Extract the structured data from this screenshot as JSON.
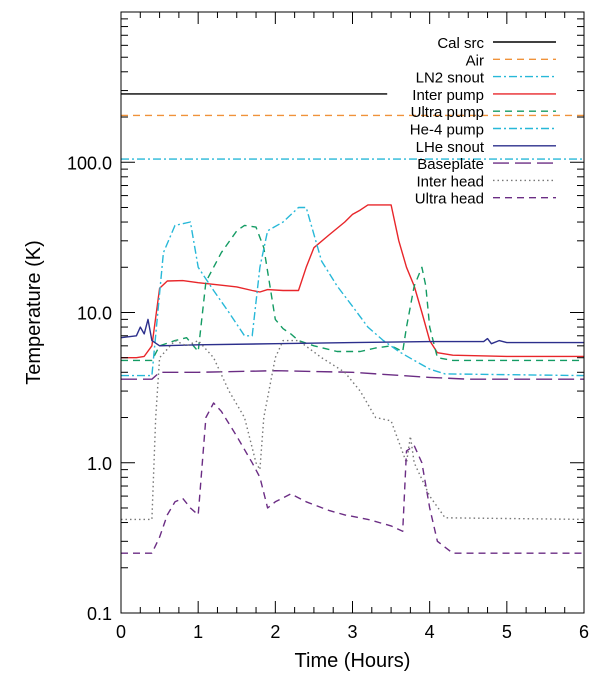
{
  "chart_data": {
    "type": "line",
    "xlabel": "Time (Hours)",
    "ylabel": "Temperature (K)",
    "xlim": [
      0,
      6
    ],
    "ylim": [
      0.1,
      1000
    ],
    "yscale": "log",
    "grid": false,
    "legend_position": "top-right",
    "x_ticks": [
      0,
      1,
      2,
      3,
      4,
      5,
      6
    ],
    "x_tick_labels": [
      "0",
      "1",
      "2",
      "3",
      "4",
      "5",
      "6"
    ],
    "y_ticks": [
      0.1,
      1,
      10,
      100
    ],
    "y_tick_labels": [
      "0.1",
      "1.0",
      "10.0",
      "100.0"
    ],
    "series": [
      {
        "name": "Cal src",
        "color": "#000000",
        "dash": "solid",
        "points": [
          [
            0,
            285
          ],
          [
            3.45,
            285
          ]
        ]
      },
      {
        "name": "Air",
        "color": "#f0923a",
        "dash": "dash",
        "points": [
          [
            0,
            205
          ],
          [
            6,
            205
          ]
        ]
      },
      {
        "name": "LN2 snout",
        "color": "#27b8d8",
        "dash": "dashdot",
        "points": [
          [
            0,
            105
          ],
          [
            6,
            105
          ]
        ]
      },
      {
        "name": "Inter pump",
        "color": "#e8262a",
        "dash": "solid",
        "points": [
          [
            0,
            5.0
          ],
          [
            0.2,
            5.0
          ],
          [
            0.3,
            5.1
          ],
          [
            0.4,
            6.0
          ],
          [
            0.5,
            14.5
          ],
          [
            0.6,
            16.2
          ],
          [
            0.8,
            16.3
          ],
          [
            1.0,
            15.8
          ],
          [
            1.3,
            15.2
          ],
          [
            1.5,
            14.8
          ],
          [
            1.7,
            14.0
          ],
          [
            1.8,
            13.7
          ],
          [
            1.9,
            14.2
          ],
          [
            2.1,
            14.0
          ],
          [
            2.3,
            14.0
          ],
          [
            2.4,
            20.0
          ],
          [
            2.5,
            27.0
          ],
          [
            2.7,
            33.0
          ],
          [
            2.9,
            40.0
          ],
          [
            3.0,
            45.0
          ],
          [
            3.1,
            48.0
          ],
          [
            3.2,
            52.0
          ],
          [
            3.5,
            52.0
          ],
          [
            3.6,
            30.0
          ],
          [
            3.7,
            20.0
          ],
          [
            3.8,
            15.0
          ],
          [
            3.9,
            10.0
          ],
          [
            4.0,
            6.5
          ],
          [
            4.1,
            5.4
          ],
          [
            4.3,
            5.2
          ],
          [
            5.0,
            5.1
          ],
          [
            6.0,
            5.1
          ]
        ]
      },
      {
        "name": "Ultra pump",
        "color": "#139b63",
        "dash": "dash",
        "points": [
          [
            0,
            4.8
          ],
          [
            0.4,
            4.8
          ],
          [
            0.5,
            6.0
          ],
          [
            0.7,
            6.5
          ],
          [
            0.85,
            6.8
          ],
          [
            1.0,
            5.5
          ],
          [
            1.1,
            16.0
          ],
          [
            1.3,
            25.0
          ],
          [
            1.5,
            35.0
          ],
          [
            1.6,
            38.0
          ],
          [
            1.75,
            37.0
          ],
          [
            1.85,
            27.0
          ],
          [
            2.0,
            9.0
          ],
          [
            2.1,
            7.8
          ],
          [
            2.2,
            7.2
          ],
          [
            2.3,
            6.5
          ],
          [
            2.5,
            6.0
          ],
          [
            2.8,
            5.5
          ],
          [
            3.1,
            5.5
          ],
          [
            3.3,
            5.8
          ],
          [
            3.5,
            6.0
          ],
          [
            3.65,
            5.5
          ],
          [
            3.7,
            8.0
          ],
          [
            3.8,
            15.0
          ],
          [
            3.9,
            20.0
          ],
          [
            3.95,
            15.0
          ],
          [
            4.0,
            8.0
          ],
          [
            4.1,
            5.0
          ],
          [
            4.3,
            4.8
          ],
          [
            6.0,
            4.8
          ]
        ]
      },
      {
        "name": "He-4 pump",
        "color": "#27b8d8",
        "dash": "dashdot",
        "points": [
          [
            0,
            3.8
          ],
          [
            0.4,
            3.8
          ],
          [
            0.55,
            25.0
          ],
          [
            0.7,
            38.0
          ],
          [
            0.9,
            40.0
          ],
          [
            1.0,
            20.0
          ],
          [
            1.2,
            14.0
          ],
          [
            1.4,
            10.0
          ],
          [
            1.6,
            7.0
          ],
          [
            1.7,
            7.0
          ],
          [
            1.8,
            20.0
          ],
          [
            1.9,
            35.0
          ],
          [
            2.1,
            40.0
          ],
          [
            2.3,
            50.0
          ],
          [
            2.4,
            50.0
          ],
          [
            2.6,
            22.0
          ],
          [
            2.8,
            15.0
          ],
          [
            3.0,
            11.0
          ],
          [
            3.2,
            8.0
          ],
          [
            3.4,
            6.5
          ],
          [
            3.6,
            5.5
          ],
          [
            3.8,
            4.8
          ],
          [
            4.0,
            4.2
          ],
          [
            4.2,
            3.9
          ],
          [
            6.0,
            3.8
          ]
        ]
      },
      {
        "name": "LHe snout",
        "color": "#2c2f8c",
        "dash": "solid",
        "points": [
          [
            0,
            6.8
          ],
          [
            0.2,
            7.0
          ],
          [
            0.25,
            8.0
          ],
          [
            0.3,
            7.2
          ],
          [
            0.35,
            9.0
          ],
          [
            0.4,
            6.5
          ],
          [
            0.5,
            6.0
          ],
          [
            1.0,
            6.1
          ],
          [
            2.0,
            6.2
          ],
          [
            3.0,
            6.3
          ],
          [
            4.0,
            6.4
          ],
          [
            4.7,
            6.4
          ],
          [
            4.75,
            6.7
          ],
          [
            4.8,
            6.2
          ],
          [
            4.9,
            6.5
          ],
          [
            5.0,
            6.3
          ],
          [
            6.0,
            6.3
          ]
        ]
      },
      {
        "name": "Baseplate",
        "color": "#6b2d84",
        "dash": "longdash",
        "points": [
          [
            0,
            3.6
          ],
          [
            0.4,
            3.6
          ],
          [
            0.5,
            4.0
          ],
          [
            1.0,
            4.0
          ],
          [
            2.0,
            4.1
          ],
          [
            3.0,
            4.0
          ],
          [
            4.0,
            3.7
          ],
          [
            4.5,
            3.6
          ],
          [
            6.0,
            3.6
          ]
        ]
      },
      {
        "name": "Inter head",
        "color": "#777777",
        "dash": "dot",
        "points": [
          [
            0,
            0.42
          ],
          [
            0.4,
            0.42
          ],
          [
            0.45,
            2.0
          ],
          [
            0.5,
            5.0
          ],
          [
            0.7,
            6.5
          ],
          [
            0.85,
            6.0
          ],
          [
            1.0,
            6.5
          ],
          [
            1.2,
            5.0
          ],
          [
            1.4,
            3.0
          ],
          [
            1.6,
            2.0
          ],
          [
            1.75,
            1.0
          ],
          [
            1.8,
            0.9
          ],
          [
            1.85,
            2.0
          ],
          [
            2.0,
            5.0
          ],
          [
            2.1,
            6.5
          ],
          [
            2.3,
            6.5
          ],
          [
            2.6,
            5.0
          ],
          [
            2.9,
            4.0
          ],
          [
            3.1,
            3.0
          ],
          [
            3.3,
            2.0
          ],
          [
            3.5,
            1.9
          ],
          [
            3.7,
            1.0
          ],
          [
            3.75,
            1.5
          ],
          [
            3.8,
            1.0
          ],
          [
            4.0,
            0.6
          ],
          [
            4.2,
            0.43
          ],
          [
            6.0,
            0.42
          ]
        ]
      },
      {
        "name": "Ultra head",
        "color": "#6b2d84",
        "dash": "dash",
        "points": [
          [
            0,
            0.25
          ],
          [
            0.4,
            0.25
          ],
          [
            0.5,
            0.32
          ],
          [
            0.6,
            0.45
          ],
          [
            0.7,
            0.55
          ],
          [
            0.8,
            0.58
          ],
          [
            0.9,
            0.5
          ],
          [
            1.0,
            0.45
          ],
          [
            1.1,
            2.0
          ],
          [
            1.2,
            2.5
          ],
          [
            1.3,
            2.2
          ],
          [
            1.5,
            1.5
          ],
          [
            1.7,
            1.0
          ],
          [
            1.8,
            0.8
          ],
          [
            1.9,
            0.5
          ],
          [
            2.0,
            0.55
          ],
          [
            2.2,
            0.62
          ],
          [
            2.4,
            0.55
          ],
          [
            2.7,
            0.48
          ],
          [
            2.9,
            0.45
          ],
          [
            3.2,
            0.42
          ],
          [
            3.5,
            0.38
          ],
          [
            3.65,
            0.35
          ],
          [
            3.7,
            1.2
          ],
          [
            3.8,
            1.3
          ],
          [
            3.9,
            1.0
          ],
          [
            4.0,
            0.5
          ],
          [
            4.1,
            0.3
          ],
          [
            4.3,
            0.25
          ],
          [
            6.0,
            0.25
          ]
        ]
      }
    ]
  }
}
